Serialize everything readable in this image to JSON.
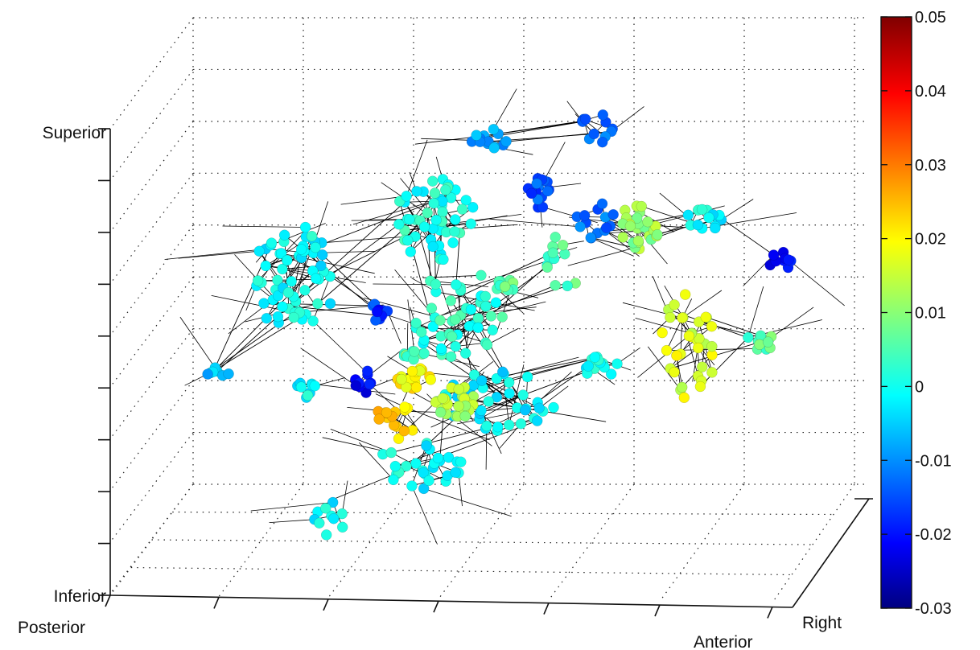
{
  "chart_data": {
    "type": "scatter",
    "projection": "3d",
    "title": "",
    "axes": {
      "z": {
        "min_label": "Inferior",
        "max_label": "Superior"
      },
      "x": {
        "min_label": "Posterior",
        "max_label": "Anterior"
      },
      "y": {
        "max_label": "Right"
      }
    },
    "grid": true,
    "colorbar": {
      "position": "right",
      "colormap": "jet",
      "min": -0.03,
      "max": 0.05,
      "ticks": [
        "0.05",
        "0.04",
        "0.03",
        "0.02",
        "0.01",
        "0",
        "-0.01",
        "-0.02",
        "-0.03"
      ],
      "tick_values": [
        0.05,
        0.04,
        0.03,
        0.02,
        0.01,
        0,
        -0.01,
        -0.02,
        -0.03
      ]
    },
    "clusters": [
      {
        "id": "c1",
        "value": 0.0,
        "n": 60,
        "edges": 24
      },
      {
        "id": "c2",
        "value": 0.002,
        "n": 50,
        "edges": 18
      },
      {
        "id": "c3",
        "value": -0.001,
        "n": 40,
        "edges": 16
      },
      {
        "id": "c4",
        "value": 0.0,
        "n": 28,
        "edges": 8
      },
      {
        "id": "c5",
        "value": -0.012,
        "n": 12,
        "edges": 3
      },
      {
        "id": "c6",
        "value": -0.012,
        "n": 14,
        "edges": 4
      },
      {
        "id": "c7",
        "value": 0.012,
        "n": 26,
        "edges": 8
      },
      {
        "id": "c8",
        "value": 0.017,
        "n": 36,
        "edges": 12
      },
      {
        "id": "c9",
        "value": 0.003,
        "n": 48,
        "edges": 18
      },
      {
        "id": "c10",
        "value": -0.008,
        "n": 16,
        "edges": 4
      },
      {
        "id": "c11",
        "value": 0.021,
        "n": 18,
        "edges": 4
      },
      {
        "id": "c12",
        "value": 0.024,
        "n": 16,
        "edges": 4
      },
      {
        "id": "c13",
        "value": -0.02,
        "n": 10,
        "edges": 3
      },
      {
        "id": "c14",
        "value": 0.006,
        "n": 10,
        "edges": 3
      },
      {
        "id": "c15",
        "value": -0.016,
        "n": 9,
        "edges": 2
      },
      {
        "id": "c16",
        "value": 0.0,
        "n": 9,
        "edges": 2
      },
      {
        "id": "c17",
        "value": 0.007,
        "n": 12,
        "edges": 3
      },
      {
        "id": "c18",
        "value": 0.0,
        "n": 14,
        "edges": 4
      },
      {
        "id": "c19",
        "value": -0.014,
        "n": 16,
        "edges": 4
      },
      {
        "id": "c20",
        "value": 0.013,
        "n": 24,
        "edges": 8
      },
      {
        "id": "c21",
        "value": 0.0,
        "n": 14,
        "edges": 4
      },
      {
        "id": "c22",
        "value": 0.0,
        "n": 10,
        "edges": 3
      },
      {
        "id": "c23",
        "value": 0.007,
        "n": 10,
        "edges": 3
      },
      {
        "id": "c24",
        "value": -0.019,
        "n": 10,
        "edges": 3
      },
      {
        "id": "c25",
        "value": 0.006,
        "n": 12,
        "edges": 3
      },
      {
        "id": "c26",
        "value": -0.004,
        "n": 8,
        "edges": 2
      }
    ]
  }
}
